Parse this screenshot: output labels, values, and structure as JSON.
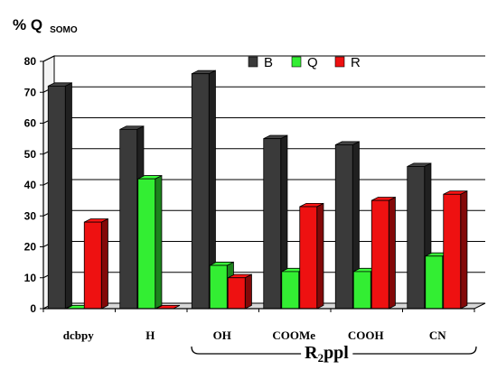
{
  "chart_data": {
    "type": "bar",
    "ylabel_main": "% Q",
    "ylabel_sub": "SOMO",
    "categories": [
      "dcbpy",
      "H",
      "OH",
      "COOMe",
      "COOH",
      "CN"
    ],
    "series": [
      {
        "name": "B",
        "color": "#3a3a3a",
        "values": [
          72,
          58,
          76,
          55,
          53,
          46
        ]
      },
      {
        "name": "Q",
        "color": "#33ee33",
        "values": [
          0,
          42,
          14,
          12,
          12,
          17
        ]
      },
      {
        "name": "R",
        "color": "#ee1111",
        "values": [
          28,
          0,
          10,
          33,
          35,
          37
        ]
      }
    ],
    "ylim": [
      0,
      80
    ],
    "yticks": [
      0,
      10,
      20,
      30,
      40,
      50,
      60,
      70,
      80
    ],
    "legend_position": "top-right",
    "group_label": {
      "main": "R",
      "sub": "2",
      "tail": "ppl",
      "spans": [
        "OH",
        "COOMe",
        "COOH",
        "CN"
      ]
    }
  }
}
